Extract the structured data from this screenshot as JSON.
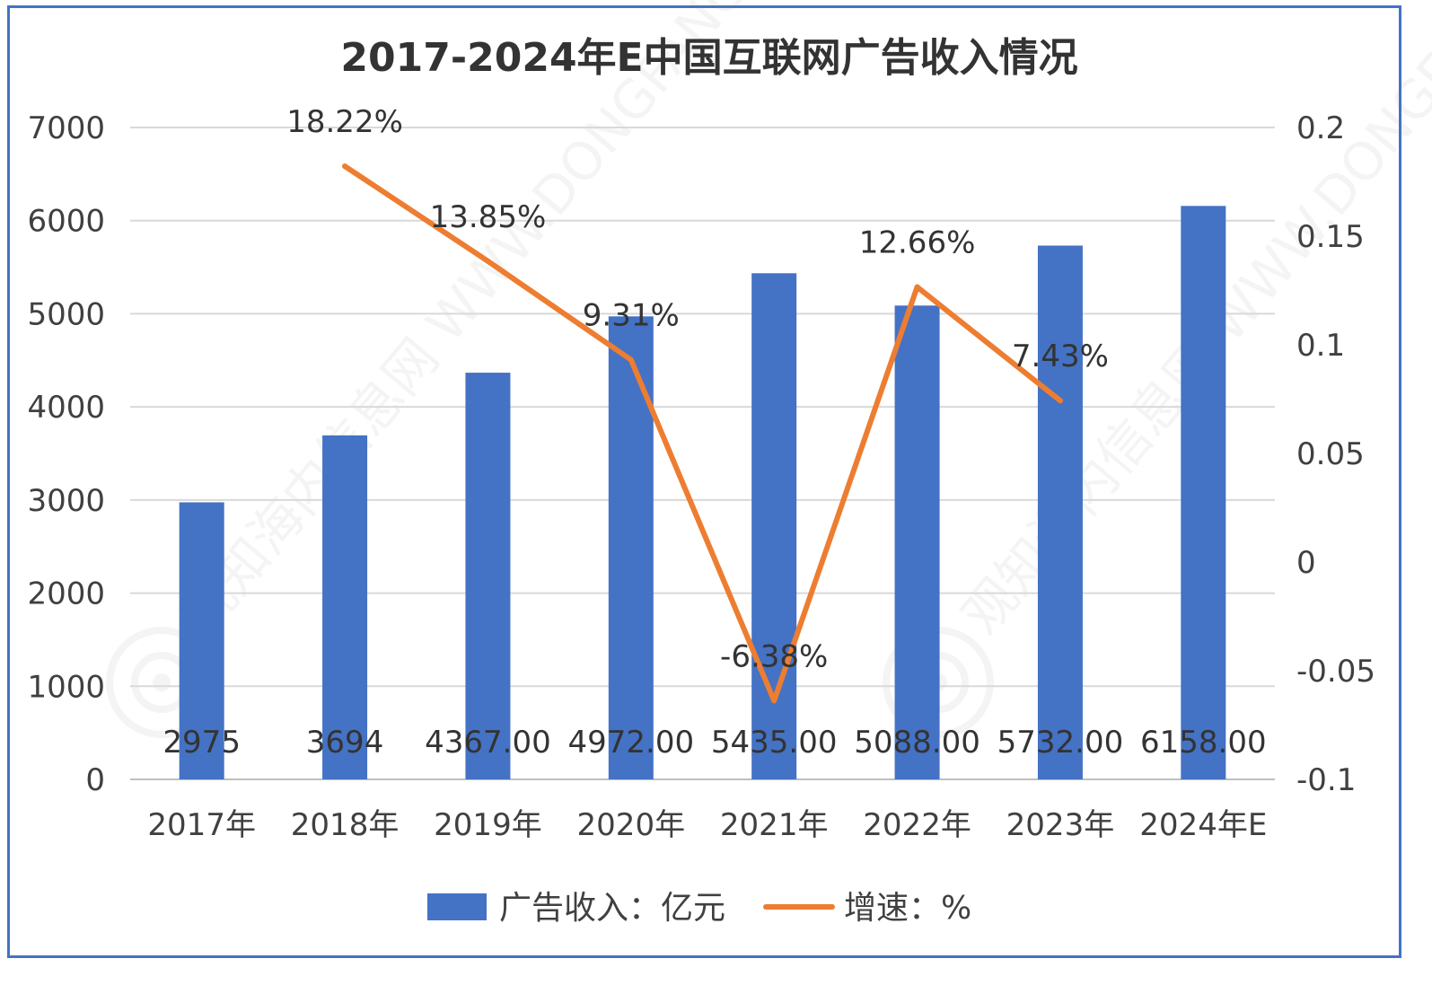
{
  "chart_data": {
    "title": "2017-2024年E中国互联网广告收入情况",
    "categories": [
      "2017年",
      "2018年",
      "2019年",
      "2020年",
      "2021年",
      "2022年",
      "2023年",
      "2024年E"
    ],
    "series": [
      {
        "name": "广告收入：亿元",
        "type": "bar",
        "axis": "left",
        "color": "#4472C4",
        "values": [
          2975,
          3694,
          4367,
          4972,
          5435,
          5088,
          5732,
          6158
        ],
        "labels": [
          "2975",
          "3694",
          "4367.00",
          "4972.00",
          "5435.00",
          "5088.00",
          "5732.00",
          "6158.00"
        ]
      },
      {
        "name": "增速：%",
        "type": "line",
        "axis": "right",
        "color": "#ED7D31",
        "values": [
          null,
          0.1822,
          0.1385,
          0.0931,
          -0.0638,
          0.1266,
          0.0743,
          null
        ],
        "labels": [
          "",
          "18.22%",
          "13.85%",
          "9.31%",
          "-6.38%",
          "12.66%",
          "7.43%",
          ""
        ]
      }
    ],
    "y_left": {
      "min": 0,
      "max": 7000,
      "ticks": [
        "0",
        "1000",
        "2000",
        "3000",
        "4000",
        "5000",
        "6000",
        "7000"
      ]
    },
    "y_right": {
      "min": -0.1,
      "max": 0.2,
      "ticks": [
        "-0.1",
        "-0.05",
        "0",
        "0.05",
        "0.1",
        "0.15",
        "0.2"
      ]
    },
    "grid": true,
    "legend": "bottom",
    "watermark": "观知海内信息网 WWW.DONGFANGQB.COM"
  }
}
